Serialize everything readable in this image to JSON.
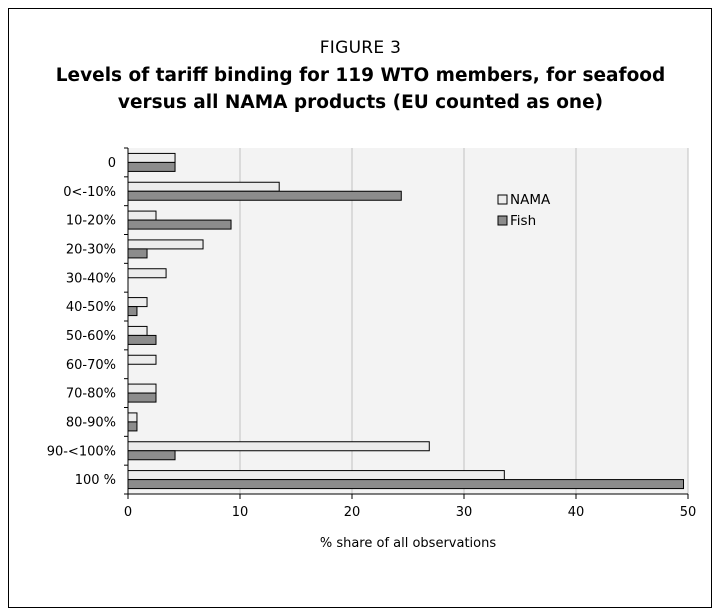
{
  "figure_label": "FIGURE 3",
  "title": "Levels of tariff binding for 119 WTO members, for seafood versus all NAMA products (EU counted as one)",
  "chart_data": {
    "type": "bar",
    "orientation": "horizontal",
    "categories": [
      "0",
      "0<-10%",
      "10-20%",
      "20-30%",
      "30-40%",
      "40-50%",
      "50-60%",
      "60-70%",
      "70-80%",
      "80-90%",
      "90-<100%",
      "100 %"
    ],
    "series": [
      {
        "name": "NAMA",
        "color": "#ececec",
        "values": [
          4.2,
          13.5,
          2.5,
          6.7,
          3.4,
          1.7,
          1.7,
          2.5,
          2.5,
          0.8,
          26.9,
          33.6
        ]
      },
      {
        "name": "Fish",
        "color": "#8c8c8c",
        "values": [
          4.2,
          24.4,
          9.2,
          1.7,
          0,
          0.8,
          2.5,
          0,
          2.5,
          0.8,
          4.2,
          49.6
        ]
      }
    ],
    "xlabel": "% share of all observations",
    "xlim": [
      0,
      50
    ],
    "xticks": [
      0,
      10,
      20,
      30,
      40,
      50
    ],
    "grid": "vertical",
    "legend_position": "top-right"
  }
}
